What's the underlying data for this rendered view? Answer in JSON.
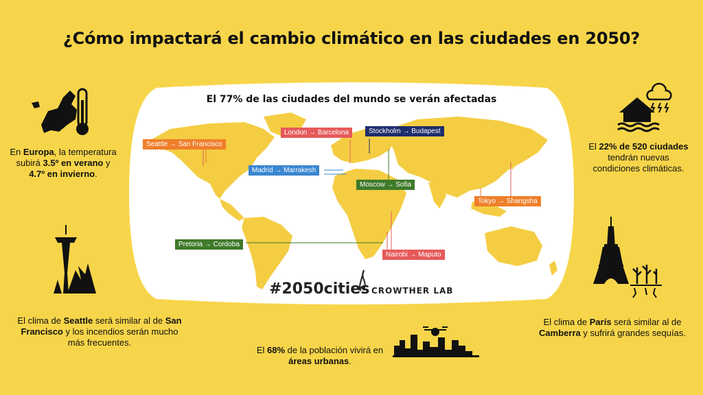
{
  "title": "¿Cómo impactará el cambio climático en las ciudades en 2050?",
  "map": {
    "subtitle": "El 77% de las ciudades del mundo se verán afectadas",
    "routes": [
      {
        "label": "Seattle → San Francisco"
      },
      {
        "label": "London → Barcelona"
      },
      {
        "label": "Stockholm → Budapest"
      },
      {
        "label": "Madrid → Marrakesh"
      },
      {
        "label": "Moscow → Sofia"
      },
      {
        "label": "Tokyo → Shangsha"
      },
      {
        "label": "Pretoria → Cordoba"
      },
      {
        "label": "Nairobi → Maputo"
      }
    ],
    "hashtag": "#2050cities",
    "lab": "CROWTHER LAB"
  },
  "europe": {
    "t1": "En ",
    "b1": "Europa",
    "t2": ", la temperatura subirá ",
    "b2": "3.5º en verano",
    "t3": " y ",
    "b3": "4.7º en invierno",
    "t4": "."
  },
  "cities": {
    "b1": "22% de 520 ciudades",
    "t1": "El ",
    "t2": " tendrán nuevas condiciones climáticas."
  },
  "seattle": {
    "t1": "El clima de ",
    "b1": "Seattle",
    "t2": " será similar al de ",
    "b2": "San Francisco",
    "t3": " y los incendios serán mucho más frecuentes."
  },
  "urban": {
    "t1": "El ",
    "b1": "68%",
    "t2": " de la población vivirá en ",
    "b2": "áreas urbanas",
    "t3": "."
  },
  "paris": {
    "t1": "El clima de ",
    "b1": "París",
    "t2": " será similar al de ",
    "b2": "Camberra",
    "t3": " y sufrirá grandes sequías."
  }
}
